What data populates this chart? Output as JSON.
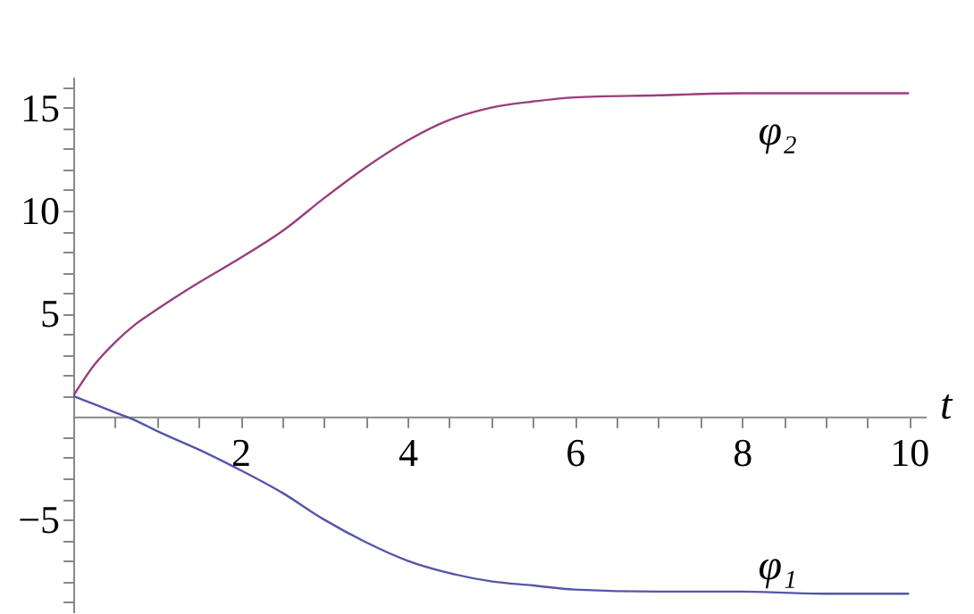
{
  "chart_data": {
    "type": "line",
    "xlabel": "t",
    "x": [
      0,
      0.25,
      0.5,
      0.75,
      1,
      1.5,
      2,
      2.5,
      3,
      3.5,
      4,
      4.5,
      5,
      5.5,
      6,
      7,
      8,
      9,
      10
    ],
    "series": [
      {
        "name": "φ₂",
        "color": "#9b3d7d",
        "values": [
          1,
          2.5,
          3.6,
          4.5,
          5.2,
          6.5,
          7.7,
          9.0,
          10.6,
          12.1,
          13.4,
          14.4,
          15.0,
          15.3,
          15.5,
          15.6,
          15.7,
          15.7,
          15.7
        ]
      },
      {
        "name": "φ₁",
        "color": "#5555aa",
        "values": [
          1,
          0.6,
          0.2,
          -0.2,
          -0.7,
          -1.6,
          -2.6,
          -3.7,
          -5.0,
          -6.1,
          -7.0,
          -7.6,
          -8.0,
          -8.2,
          -8.4,
          -8.5,
          -8.5,
          -8.6,
          -8.6
        ]
      }
    ],
    "xlim": [
      0,
      10.2
    ],
    "ylim": [
      -9.5,
      16.5
    ],
    "xticks": [
      {
        "value": 0.5,
        "label": null
      },
      {
        "value": 1,
        "label": null
      },
      {
        "value": 1.5,
        "label": null
      },
      2,
      {
        "value": 2.5,
        "label": null
      },
      {
        "value": 3,
        "label": null
      },
      {
        "value": 3.5,
        "label": null
      },
      4,
      {
        "value": 4.5,
        "label": null
      },
      {
        "value": 5,
        "label": null
      },
      {
        "value": 5.5,
        "label": null
      },
      6,
      {
        "value": 6.5,
        "label": null
      },
      {
        "value": 7,
        "label": null
      },
      {
        "value": 7.5,
        "label": null
      },
      8,
      {
        "value": 8.5,
        "label": null
      },
      {
        "value": 9,
        "label": null
      },
      {
        "value": 9.5,
        "label": null
      },
      10
    ],
    "yticks": [
      {
        "value": -9,
        "label": null
      },
      {
        "value": -8,
        "label": null
      },
      {
        "value": -7,
        "label": null
      },
      {
        "value": -6,
        "label": null
      },
      {
        "value": -5,
        "label": "−5"
      },
      {
        "value": -4,
        "label": null
      },
      {
        "value": -3,
        "label": null
      },
      {
        "value": -2,
        "label": null
      },
      {
        "value": -1,
        "label": null
      },
      {
        "value": 1,
        "label": null
      },
      {
        "value": 2,
        "label": null
      },
      {
        "value": 3,
        "label": null
      },
      {
        "value": 4,
        "label": null
      },
      5,
      {
        "value": 6,
        "label": null
      },
      {
        "value": 7,
        "label": null
      },
      {
        "value": 8,
        "label": null
      },
      {
        "value": 9,
        "label": null
      },
      10,
      {
        "value": 11,
        "label": null
      },
      {
        "value": 12,
        "label": null
      },
      {
        "value": 13,
        "label": null
      },
      {
        "value": 14,
        "label": null
      },
      15,
      {
        "value": 16,
        "label": null
      }
    ],
    "grid": false,
    "marker": "none",
    "line_style": "solid"
  }
}
